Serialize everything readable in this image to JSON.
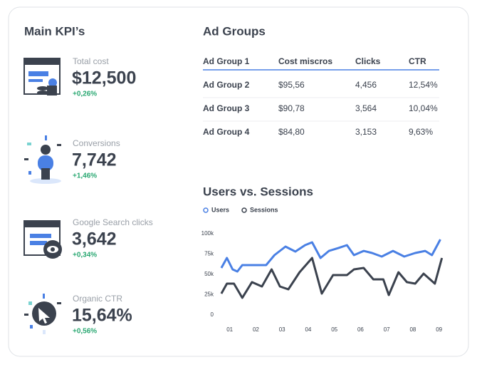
{
  "kpi_panel": {
    "title": "Main KPI’s",
    "kpis": [
      {
        "label": "Total cost",
        "value": "$12,500",
        "change": "+0,26%"
      },
      {
        "label": "Conversions",
        "value": "7,742",
        "change": "+1,46%"
      },
      {
        "label": "Google Search clicks",
        "value": "3,642",
        "change": "+0,34%"
      },
      {
        "label": "Organic CTR",
        "value": "15,64%",
        "change": "+0,56%"
      }
    ]
  },
  "table": {
    "title": "Ad Groups",
    "header": [
      "Ad Group 1",
      "Cost miscros",
      "Clicks",
      "CTR"
    ],
    "rows": [
      [
        "Ad Group 2",
        "$95,56",
        "4,456",
        "12,54%"
      ],
      [
        "Ad Group 3",
        "$90,78",
        "3,564",
        "10,04%"
      ],
      [
        "Ad Group 4",
        "$84,80",
        "3,153",
        "9,63%"
      ]
    ]
  },
  "chart_data": {
    "type": "line",
    "title": "Users vs. Sessions",
    "xlim": [
      0.6,
      9.2
    ],
    "xticks": [
      {
        "value": 1,
        "label": "01"
      },
      {
        "value": 2,
        "label": "02"
      },
      {
        "value": 3,
        "label": "03"
      },
      {
        "value": 4,
        "label": "04"
      },
      {
        "value": 5,
        "label": "05"
      },
      {
        "value": 6,
        "label": "06"
      },
      {
        "value": 7,
        "label": "07"
      },
      {
        "value": 8,
        "label": "08"
      },
      {
        "value": 9,
        "label": "09"
      }
    ],
    "ylim": [
      0,
      100000
    ],
    "yticks": [
      0,
      {
        "value": 25000,
        "label": "25k"
      },
      {
        "value": 50000,
        "label": "50k"
      },
      {
        "value": 75000,
        "label": "75k"
      },
      {
        "value": 100000,
        "label": "100k"
      }
    ],
    "series": [
      {
        "name": "Users",
        "color": "#4a80e4",
        "x": [
          0.68,
          0.89,
          1.11,
          1.29,
          1.48,
          1.8,
          2.39,
          2.71,
          3.13,
          3.51,
          3.88,
          4.15,
          4.47,
          4.79,
          5.16,
          5.48,
          5.75,
          6.12,
          6.44,
          6.81,
          7.24,
          7.67,
          8.09,
          8.47,
          8.73,
          9.05
        ],
        "values": [
          57900,
          70200,
          56100,
          53500,
          61400,
          61400,
          61400,
          73700,
          84200,
          78100,
          86000,
          89500,
          70200,
          78900,
          82500,
          86000,
          73700,
          78900,
          76300,
          71900,
          78900,
          71900,
          76300,
          78900,
          73700,
          93000
        ]
      },
      {
        "name": "Sessions",
        "color": "#3b424e",
        "x": [
          0.68,
          0.89,
          1.16,
          1.48,
          1.85,
          2.23,
          2.6,
          2.92,
          3.24,
          3.67,
          4.15,
          4.52,
          4.95,
          5.48,
          5.75,
          6.12,
          6.49,
          6.87,
          7.08,
          7.45,
          7.77,
          8.09,
          8.41,
          8.84,
          9.11
        ],
        "values": [
          26300,
          38600,
          38600,
          21100,
          40400,
          35100,
          56100,
          35100,
          31600,
          52600,
          70200,
          26300,
          49100,
          49100,
          56100,
          57900,
          43900,
          43900,
          24600,
          52600,
          40400,
          38600,
          50900,
          38600,
          70200
        ]
      }
    ]
  }
}
